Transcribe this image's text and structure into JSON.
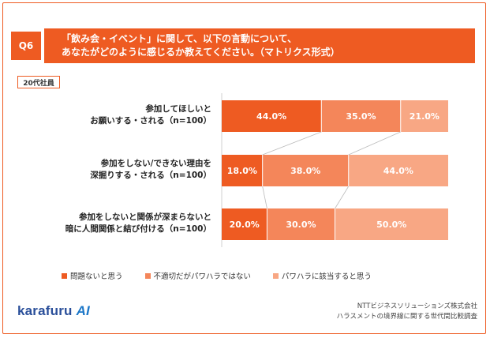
{
  "question": {
    "number": "Q6",
    "line1": "「飲み会・イベント」に関して、以下の言動について、",
    "line2": "あなたがどのように感じるか教えてください。（マトリクス形式）"
  },
  "segment_badge": "20代社員",
  "colors": {
    "accent": "#ee5b22",
    "series": [
      "#ee5b22",
      "#f4865a",
      "#f8a784"
    ]
  },
  "chart_data": {
    "type": "bar",
    "orientation": "horizontal-stacked-100",
    "categories": [
      [
        "参加してほしいと",
        "お願いする・される（n=100）"
      ],
      [
        "参加をしない/できない理由を",
        "深掘りする・される（n=100）"
      ],
      [
        "参加をしないと関係が深まらないと",
        "暗に人間関係と結び付ける（n=100）"
      ]
    ],
    "series": [
      {
        "name": "問題ないと思う",
        "values": [
          44.0,
          18.0,
          20.0
        ]
      },
      {
        "name": "不適切だがパワハラではない",
        "values": [
          35.0,
          38.0,
          30.0
        ]
      },
      {
        "name": "パワハラに該当すると思う",
        "values": [
          21.0,
          44.0,
          50.0
        ]
      }
    ],
    "data_labels": [
      [
        "44.0%",
        "35.0%",
        "21.0%"
      ],
      [
        "18.0%",
        "38.0%",
        "44.0%"
      ],
      [
        "20.0%",
        "30.0%",
        "50.0%"
      ]
    ],
    "xlim": [
      0,
      100
    ],
    "legend_position": "bottom",
    "grid": false
  },
  "footer": {
    "logo_main": "karafuru",
    "logo_ai": "AI",
    "source_line1": "NTTビジネスソリューションズ株式会社",
    "source_line2": "ハラスメントの境界線に関する世代間比較調査"
  }
}
